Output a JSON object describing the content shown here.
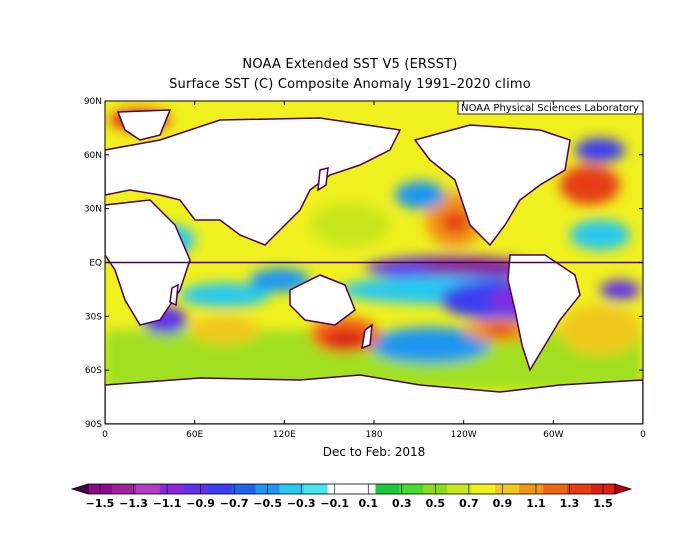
{
  "title": "NOAA Extended SST V5 (ERSST)",
  "subtitle": "Surface SST (C) Composite Anomaly 1991–2020 climo",
  "credit": "NOAA Physical Sciences Laboratory",
  "period": "Dec to Feb: 2018",
  "lat_ticks": [
    {
      "lat": 90,
      "label": "90N"
    },
    {
      "lat": 60,
      "label": "60N"
    },
    {
      "lat": 30,
      "label": "30N"
    },
    {
      "lat": 0,
      "label": "EQ"
    },
    {
      "lat": -30,
      "label": "30S"
    },
    {
      "lat": -60,
      "label": "60S"
    },
    {
      "lat": -90,
      "label": "90S"
    }
  ],
  "lon_ticks": [
    {
      "lon": 0,
      "label": "0"
    },
    {
      "lon": 60,
      "label": "60E"
    },
    {
      "lon": 120,
      "label": "120E"
    },
    {
      "lon": 180,
      "label": "180"
    },
    {
      "lon": 240,
      "label": "120W"
    },
    {
      "lon": 300,
      "label": "60W"
    },
    {
      "lon": 360,
      "label": "0"
    }
  ],
  "colorbar": {
    "labels": [
      "−1.5",
      "−1.3",
      "−1.1",
      "−0.9",
      "−0.7",
      "−0.5",
      "−0.3",
      "−0.1",
      "0.1",
      "0.3",
      "0.5",
      "0.7",
      "0.9",
      "1.1",
      "1.3",
      "1.5"
    ],
    "colors": [
      "#8a0a8a",
      "#a020a0",
      "#b43cc4",
      "#8c28dc",
      "#6432e6",
      "#3c3cf0",
      "#1e64f0",
      "#1e96f0",
      "#28c8f0",
      "#46e6f0",
      "#ffffff",
      "#ffffff",
      "#1ec83c",
      "#46dc32",
      "#8cdc1e",
      "#c8e61e",
      "#f0f01e",
      "#f0c81e",
      "#f09614",
      "#f06414",
      "#e63c14",
      "#dc1e14"
    ],
    "low_end_color": "#4b0050",
    "high_end_color": "#b40014"
  },
  "land_color": "#ffffff",
  "coast_color": "#4b0050"
}
